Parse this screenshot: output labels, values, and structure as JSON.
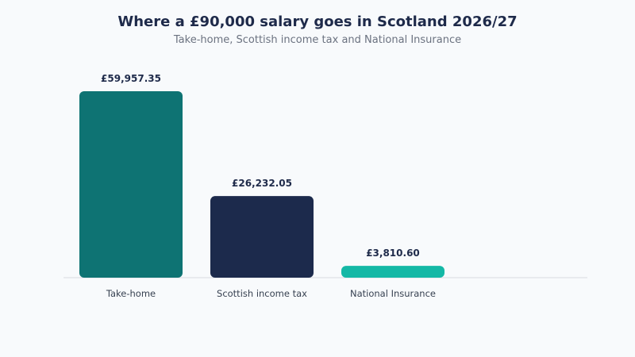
{
  "chart_data": {
    "type": "bar",
    "title": "Where a £90,000 salary goes in Scotland 2026/27",
    "subtitle": "Take-home, Scottish income tax and National Insurance",
    "xlabel": "",
    "ylabel": "",
    "grid": false,
    "legend": "none",
    "ylim": [
      0,
      59957.35
    ],
    "categories": [
      "Take-home",
      "Scottish income tax",
      "National Insurance"
    ],
    "values": [
      59957.35,
      26232.05,
      3810.6
    ],
    "value_labels": [
      "£59,957.35",
      "£26,232.05",
      "£3,810.60"
    ],
    "colors": [
      "#0e7373",
      "#1c2a4c",
      "#14b8a6"
    ]
  }
}
